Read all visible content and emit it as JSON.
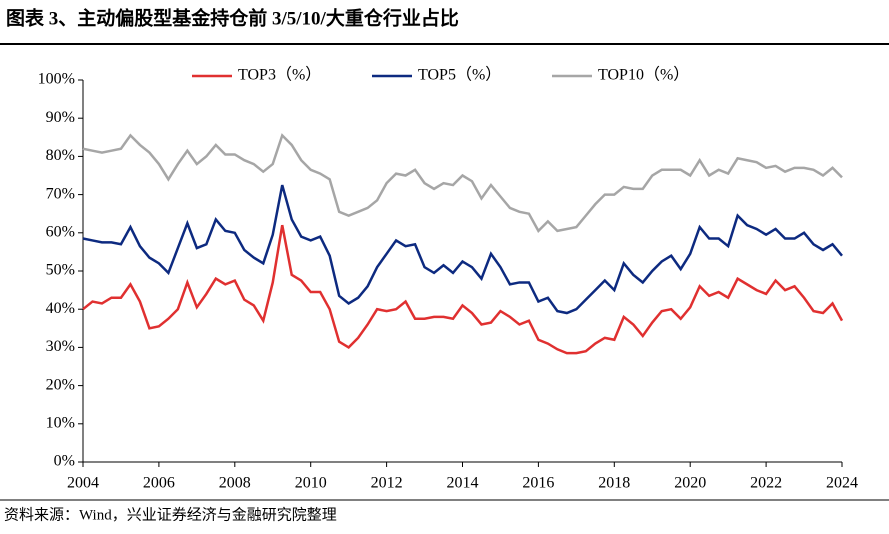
{
  "chart_data": {
    "type": "line",
    "title": "图表 3、主动偏股型基金持仓前 3/5/10/大重仓行业占比",
    "source": "资料来源：Wind，兴业证券经济与金融研究院整理",
    "x": [
      2004,
      2004.25,
      2004.5,
      2004.75,
      2005,
      2005.25,
      2005.5,
      2005.75,
      2006,
      2006.25,
      2006.5,
      2006.75,
      2007,
      2007.25,
      2007.5,
      2007.75,
      2008,
      2008.25,
      2008.5,
      2008.75,
      2009,
      2009.25,
      2009.5,
      2009.75,
      2010,
      2010.25,
      2010.5,
      2010.75,
      2011,
      2011.25,
      2011.5,
      2011.75,
      2012,
      2012.25,
      2012.5,
      2012.75,
      2013,
      2013.25,
      2013.5,
      2013.75,
      2014,
      2014.25,
      2014.5,
      2014.75,
      2015,
      2015.25,
      2015.5,
      2015.75,
      2016,
      2016.25,
      2016.5,
      2016.75,
      2017,
      2017.25,
      2017.5,
      2017.75,
      2018,
      2018.25,
      2018.5,
      2018.75,
      2019,
      2019.25,
      2019.5,
      2019.75,
      2020,
      2020.25,
      2020.5,
      2020.75,
      2021,
      2021.25,
      2021.5,
      2021.75,
      2022,
      2022.25,
      2022.5,
      2022.75,
      2023,
      2023.25,
      2023.5,
      2023.75,
      2024
    ],
    "series": [
      {
        "name": "TOP3（%）",
        "color": "#e03030",
        "values": [
          40,
          42,
          41.5,
          43,
          43,
          46.5,
          42,
          35,
          35.5,
          37.5,
          40,
          47,
          40.5,
          44,
          48,
          46.5,
          47.5,
          42.5,
          41,
          37,
          47,
          62,
          49,
          47.5,
          44.5,
          44.5,
          40,
          31.5,
          30,
          32.5,
          36,
          40,
          39.5,
          40,
          42,
          37.5,
          37.5,
          38,
          38,
          37.5,
          41,
          39,
          36,
          36.5,
          39.5,
          38,
          36,
          37,
          32,
          31,
          29.5,
          28.5,
          28.5,
          29,
          31,
          32.5,
          32,
          38,
          36,
          33,
          36.5,
          39.5,
          40,
          37.5,
          40.5,
          46,
          43.5,
          44.5,
          43,
          48,
          46.5,
          45,
          44,
          47.5,
          45,
          46,
          43,
          39.5,
          39,
          41.5,
          37
        ]
      },
      {
        "name": "TOP5（%）",
        "color": "#0d2a80",
        "values": [
          58.5,
          58,
          57.5,
          57.5,
          57,
          61.5,
          56.5,
          53.5,
          52,
          49.5,
          56,
          62.5,
          56,
          57,
          63.5,
          60.5,
          60,
          55.5,
          53.5,
          52,
          59.5,
          72.5,
          63.5,
          59,
          58,
          59,
          54,
          43.5,
          41.5,
          43,
          46,
          51,
          54.5,
          58,
          56.5,
          57,
          51,
          49.5,
          51.5,
          49.5,
          52.5,
          51,
          48,
          54.5,
          51,
          46.5,
          47,
          47,
          42,
          43,
          39.5,
          39,
          40,
          42.5,
          45,
          47.5,
          45,
          52,
          49,
          47,
          50,
          52.5,
          54,
          50.5,
          54.5,
          61.5,
          58.5,
          58.5,
          56.5,
          64.5,
          62,
          61,
          59.5,
          61,
          58.5,
          58.5,
          60,
          57,
          55.5,
          57,
          54
        ]
      },
      {
        "name": "TOP10（%）",
        "color": "#a6a6a6",
        "values": [
          82,
          81.5,
          81,
          81.5,
          82,
          85.5,
          83,
          81,
          78,
          74,
          78,
          81.5,
          78,
          80,
          83,
          80.5,
          80.5,
          79,
          78,
          76,
          78,
          85.5,
          83,
          79,
          76.5,
          75.5,
          74,
          65.5,
          64.5,
          65.5,
          66.5,
          68.5,
          73,
          75.5,
          75,
          76.5,
          73,
          71.5,
          73,
          72.5,
          75,
          73.5,
          69,
          72.5,
          69.5,
          66.5,
          65.5,
          65,
          60.5,
          63,
          60.5,
          61,
          61.5,
          64.5,
          67.5,
          70,
          70,
          72,
          71.5,
          71.5,
          75,
          76.5,
          76.5,
          76.5,
          75,
          79,
          75,
          76.5,
          75.5,
          79.5,
          79,
          78.5,
          77,
          77.5,
          76,
          77,
          77,
          76.5,
          75,
          77,
          74.5
        ]
      }
    ],
    "xlim": [
      2004,
      2024
    ],
    "xticks": [
      2004,
      2006,
      2008,
      2010,
      2012,
      2014,
      2016,
      2018,
      2020,
      2022,
      2024
    ],
    "ylim": [
      0,
      100
    ],
    "yticks": [
      {
        "value": 0,
        "label": "0%"
      },
      {
        "value": 10,
        "label": "10%"
      },
      {
        "value": 20,
        "label": "20%"
      },
      {
        "value": 30,
        "label": "30%"
      },
      {
        "value": 40,
        "label": "40%"
      },
      {
        "value": 50,
        "label": "50%"
      },
      {
        "value": 60,
        "label": "60%"
      },
      {
        "value": 70,
        "label": "70%"
      },
      {
        "value": 80,
        "label": "80%"
      },
      {
        "value": 90,
        "label": "90%"
      },
      {
        "value": 100,
        "label": "100%"
      }
    ],
    "legend": "top",
    "grid": false
  }
}
